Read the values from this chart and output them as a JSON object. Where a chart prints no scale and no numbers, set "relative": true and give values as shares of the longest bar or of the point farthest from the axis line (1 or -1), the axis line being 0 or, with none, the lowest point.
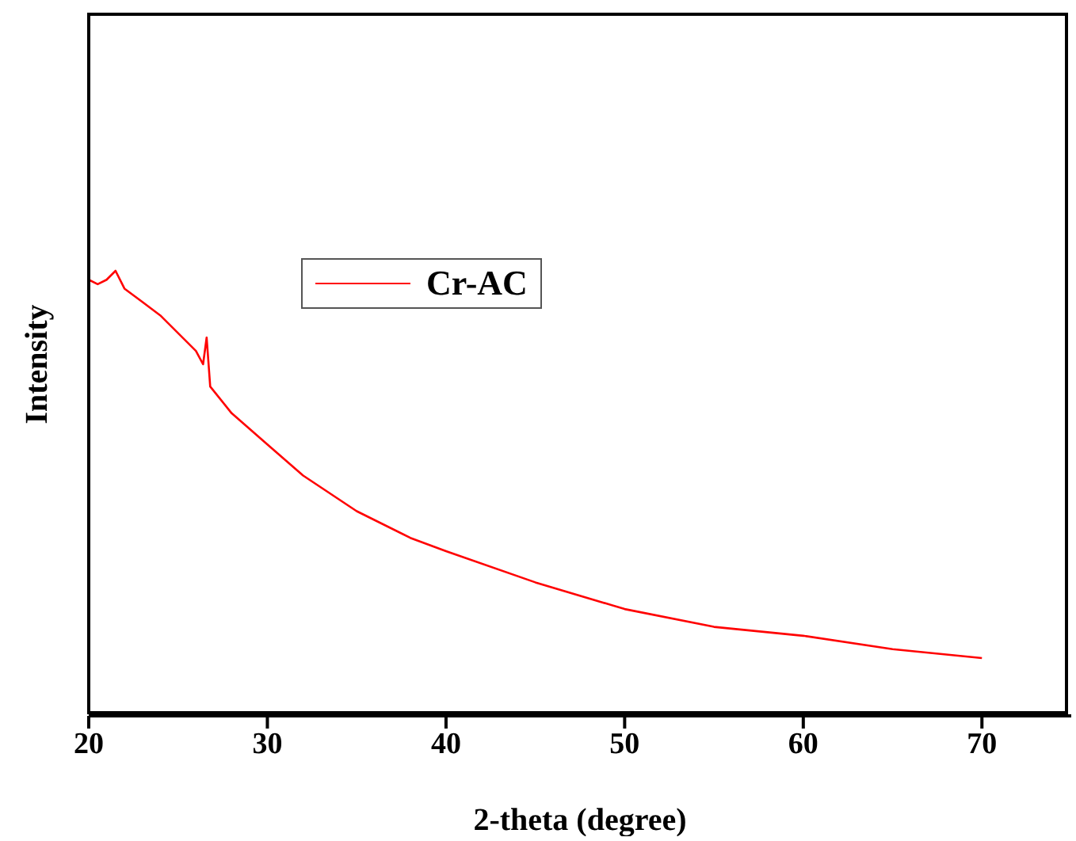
{
  "chart_data": {
    "type": "line",
    "xlabel": "2-theta (degree)",
    "ylabel": "Intensity",
    "relative": true,
    "xlim": [
      20,
      75
    ],
    "xticks": [
      20,
      30,
      40,
      50,
      60,
      70
    ],
    "legend": "top left",
    "x": [
      20,
      20.5,
      21,
      21.5,
      22,
      23,
      24,
      25,
      26,
      26.4,
      26.6,
      26.8,
      28,
      30,
      32,
      35,
      38,
      40,
      45,
      50,
      55,
      60,
      65,
      70
    ],
    "series": [
      {
        "name": "Cr-AC",
        "color": "#ff0000",
        "values": [
          0.98,
          0.97,
          0.98,
          1,
          0.96,
          0.93,
          0.9,
          0.86,
          0.82,
          0.79,
          0.85,
          0.74,
          0.68,
          0.61,
          0.54,
          0.46,
          0.4,
          0.37,
          0.3,
          0.24,
          0.2,
          0.18,
          0.15,
          0.13
        ]
      }
    ]
  }
}
